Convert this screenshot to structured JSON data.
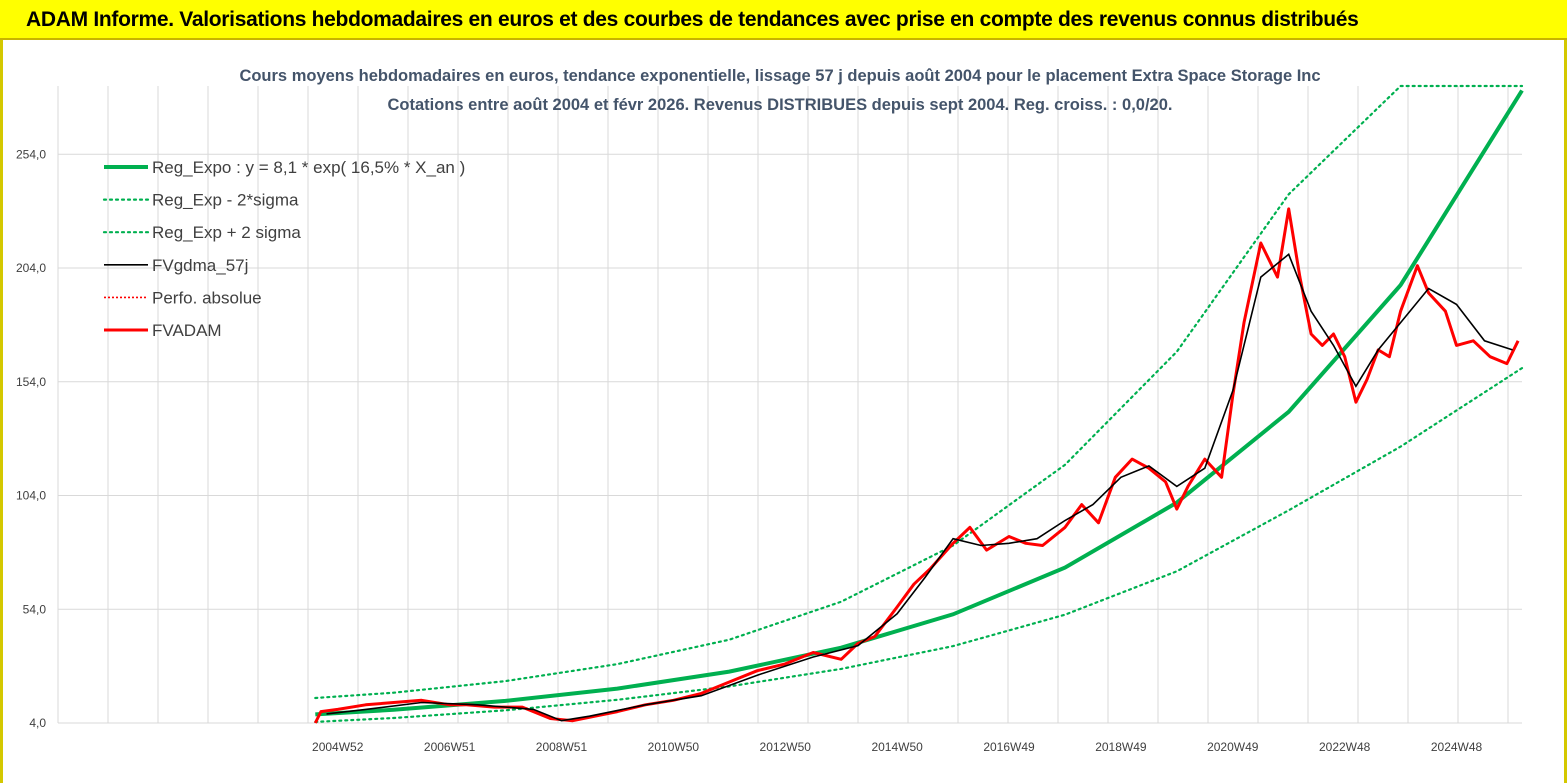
{
  "page": {
    "banner_title": "ADAM Informe. Valorisations hebdomadaires en euros et des courbes de tendances avec prise en compte des revenus connus distribués"
  },
  "chart_data": {
    "type": "line",
    "title_line1": "Cours moyens hebdomadaires en euros, tendance exponentielle, lissage 57 j depuis août 2004 pour le placement Extra Space Storage Inc",
    "title_line2": "Cotations entre août 2004 et févr 2026. Revenus DISTRIBUES depuis sept 2004. Reg.  croiss. : 0,0/20.",
    "xlabel": "",
    "ylabel": "",
    "x_range": [
      2000.0,
      2026.17
    ],
    "ylim": [
      4,
      284
    ],
    "y_ticks": [
      4,
      54,
      104,
      154,
      204,
      254
    ],
    "y_tick_labels": [
      "4,0",
      "54,0",
      "104,0",
      "154,0",
      "204,0",
      "254,0"
    ],
    "x_tick_labels": [
      {
        "x": 2005.0,
        "label": "2004W52"
      },
      {
        "x": 2007.0,
        "label": "2006W51"
      },
      {
        "x": 2009.0,
        "label": "2008W51"
      },
      {
        "x": 2011.0,
        "label": "2010W50"
      },
      {
        "x": 2013.0,
        "label": "2012W50"
      },
      {
        "x": 2015.0,
        "label": "2014W50"
      },
      {
        "x": 2017.0,
        "label": "2016W49"
      },
      {
        "x": 2019.0,
        "label": "2018W49"
      },
      {
        "x": 2021.0,
        "label": "2020W49"
      },
      {
        "x": 2023.0,
        "label": "2022W48"
      },
      {
        "x": 2025.0,
        "label": "2024W48"
      }
    ],
    "grid": true,
    "legend_position": "top-left",
    "colors": {
      "reg_expo": "#00b050",
      "fvgdma": "#000000",
      "perfo": "#ff0000",
      "fvadam": "#ff0000",
      "title": "#44546a",
      "grid": "#d9d9d9"
    },
    "series": [
      {
        "name": "Reg_Expo : y = 8,1 * exp( 16,5% *  X_an )",
        "style": "solid-thick",
        "x": [
          2004.6,
          2006,
          2008,
          2010,
          2012,
          2014,
          2016,
          2018,
          2020,
          2022,
          2024,
          2026.17
        ],
        "values": [
          7.8,
          9.8,
          13.7,
          19.1,
          26.6,
          37.1,
          51.8,
          72.3,
          100.9,
          140.8,
          196.5,
          282
        ]
      },
      {
        "name": "Reg_Exp - 2*sigma",
        "style": "dotted",
        "x": [
          2004.6,
          2006,
          2008,
          2010,
          2012,
          2014,
          2016,
          2018,
          2020,
          2022,
          2024,
          2026.17
        ],
        "values": [
          4.5,
          6.2,
          9.6,
          14.2,
          20.1,
          27.8,
          37.8,
          51.6,
          70.7,
          97.5,
          125.5,
          160
        ]
      },
      {
        "name": "Reg_Exp + 2 sigma",
        "style": "dotted",
        "x": [
          2004.6,
          2006,
          2008,
          2010,
          2012,
          2014,
          2016,
          2018,
          2020,
          2022,
          2024,
          2026.17
        ],
        "values": [
          15,
          17.3,
          22.4,
          29.9,
          40.6,
          57.3,
          82,
          117.5,
          167.2,
          236.4,
          284,
          284
        ]
      },
      {
        "name": "FVgdma_57j",
        "style": "solid-thin",
        "x": [
          2004.8,
          2005.5,
          2006.5,
          2007.5,
          2008.5,
          2009.0,
          2009.5,
          2010.5,
          2011.5,
          2012.5,
          2013.5,
          2014.3,
          2015.0,
          2015.5,
          2016.0,
          2016.5,
          2017.0,
          2017.5,
          2018.0,
          2018.5,
          2019.0,
          2019.5,
          2020.0,
          2020.5,
          2021.0,
          2021.5,
          2022.0,
          2022.4,
          2022.8,
          2023.2,
          2023.6,
          2024.0,
          2024.5,
          2025.0,
          2025.5,
          2026.0
        ],
        "values": [
          8,
          10,
          13,
          12,
          10,
          5,
          7,
          12,
          16,
          25,
          33,
          38,
          52,
          68,
          85,
          82,
          83,
          85,
          93,
          100,
          112,
          117,
          108,
          116,
          150,
          200,
          210,
          185,
          170,
          152,
          168,
          180,
          195,
          188,
          172,
          168
        ]
      },
      {
        "name": "Perfo. absolue",
        "style": "dotted-thin",
        "x": [],
        "values": []
      },
      {
        "name": "FVADAM",
        "style": "solid",
        "x": [
          2004.6,
          2004.7,
          2005.0,
          2005.5,
          2006.0,
          2006.5,
          2007.0,
          2007.3,
          2007.8,
          2008.3,
          2008.8,
          2009.2,
          2009.6,
          2010.0,
          2010.5,
          2011.0,
          2011.5,
          2012.0,
          2012.5,
          2013.0,
          2013.5,
          2014.0,
          2014.3,
          2014.6,
          2015.0,
          2015.3,
          2015.6,
          2016.0,
          2016.3,
          2016.6,
          2017.0,
          2017.3,
          2017.6,
          2018.0,
          2018.3,
          2018.6,
          2018.9,
          2019.2,
          2019.5,
          2019.8,
          2020.0,
          2020.2,
          2020.5,
          2020.8,
          2021.0,
          2021.2,
          2021.5,
          2021.8,
          2022.0,
          2022.2,
          2022.4,
          2022.6,
          2022.8,
          2023.0,
          2023.2,
          2023.4,
          2023.6,
          2023.8,
          2024.0,
          2024.3,
          2024.5,
          2024.8,
          2025.0,
          2025.3,
          2025.6,
          2025.9,
          2026.1
        ],
        "values": [
          3,
          9,
          10,
          12,
          13,
          14,
          12,
          12,
          11,
          11,
          6,
          5,
          7,
          9,
          12,
          14,
          17,
          22,
          27,
          30,
          35,
          32,
          39,
          42,
          55,
          65,
          72,
          83,
          90,
          80,
          86,
          83,
          82,
          90,
          100,
          92,
          112,
          120,
          116,
          110,
          98,
          108,
          120,
          112,
          148,
          180,
          215,
          200,
          230,
          200,
          175,
          170,
          175,
          165,
          145,
          155,
          168,
          165,
          185,
          205,
          193,
          185,
          170,
          172,
          165,
          162,
          172
        ]
      }
    ]
  }
}
